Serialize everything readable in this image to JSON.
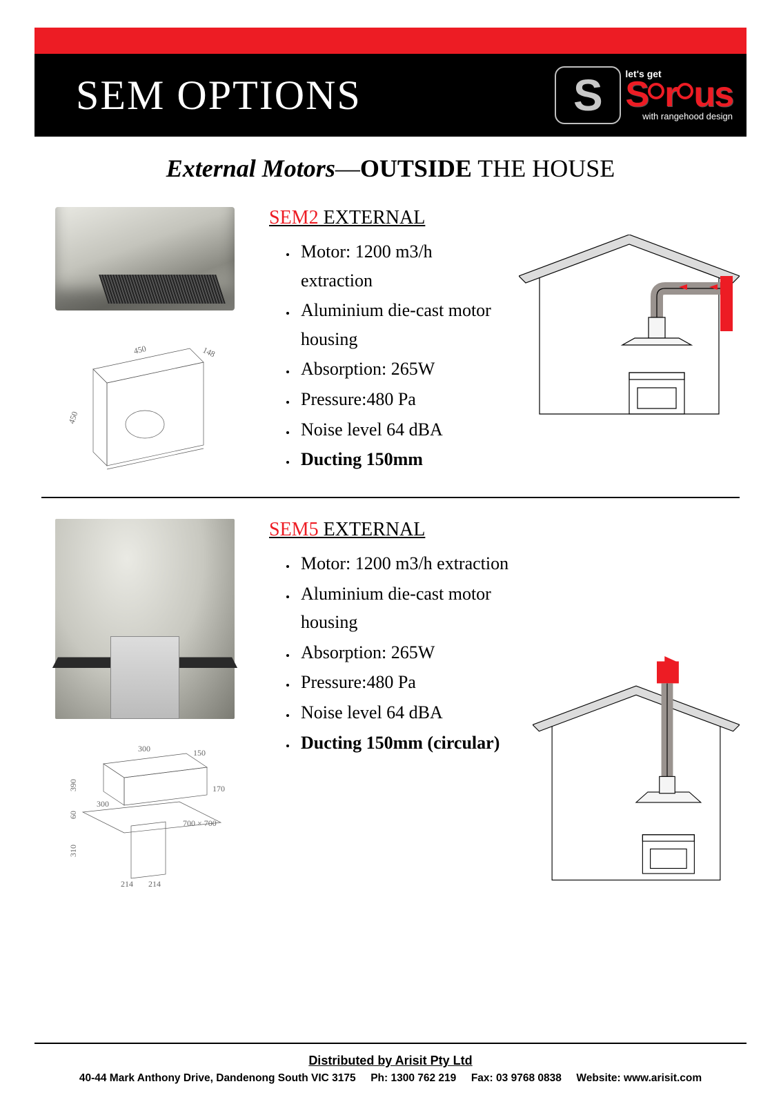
{
  "header": {
    "title": "SEM OPTIONS",
    "logo": {
      "lets_get": "let's get",
      "brand": "Sirius",
      "tagline": "with rangehood design"
    }
  },
  "subtitle": {
    "italic": "External Motors",
    "dash": "—",
    "bold": "OUTSIDE",
    "rest": " THE HOUSE"
  },
  "sem2": {
    "heading_model": "SEM2",
    "heading_rest": " EXTERNAL",
    "specs": [
      {
        "text": "Motor: 1200 m3/h extraction",
        "bold": false
      },
      {
        "text": "Aluminium die-cast motor housing",
        "bold": false
      },
      {
        "text": "Absorption: 265W",
        "bold": false
      },
      {
        "text": "Pressure:480 Pa",
        "bold": false
      },
      {
        "text": "Noise level 64 dBA",
        "bold": false
      },
      {
        "text": "Ducting 150mm",
        "bold": true
      }
    ],
    "schematic_dims": {
      "w": "450",
      "h": "450",
      "d": "148"
    }
  },
  "sem5": {
    "heading_model": "SEM5",
    "heading_rest": " EXTERNAL",
    "specs": [
      {
        "text": "Motor: 1200 m3/h extraction",
        "bold": false
      },
      {
        "text": "Aluminium die-cast motor housing",
        "bold": false
      },
      {
        "text": "Absorption: 265W",
        "bold": false
      },
      {
        "text": "Pressure:480 Pa",
        "bold": false
      },
      {
        "text": "Noise level 64 dBA",
        "bold": false
      },
      {
        "text": "Ducting 150mm (circular)",
        "bold": true
      }
    ],
    "schematic_dims": {
      "a": "300",
      "b": "150",
      "c": "390",
      "d": "60",
      "e": "310",
      "f": "300",
      "g": "700 × 700",
      "h": "214",
      "i": "214",
      "j": "170"
    }
  },
  "footer": {
    "distributed": "Distributed by Arisit Pty Ltd",
    "address": "40-44 Mark Anthony Drive,  Dandenong South VIC 3175",
    "ph_label": "Ph:",
    "ph": "1300 762 219",
    "fax_label": "Fax:",
    "fax": "03 9768 0838",
    "web_label": "Website:",
    "web": "www.arisit.com"
  },
  "colors": {
    "red": "#ed1c24",
    "black": "#000000"
  }
}
